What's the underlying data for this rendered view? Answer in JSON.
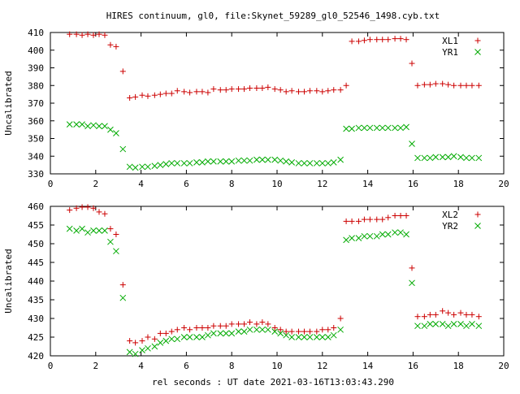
{
  "title": "HIRES continuum, gl0, file:Skynet_59289_gl0_52546_1498.cyb.txt",
  "xlabel": "rel seconds : UT date 2021-03-16T13:03:43.290",
  "chart_data": [
    {
      "type": "scatter",
      "ylabel": "Uncalibrated",
      "xlim": [
        0,
        20
      ],
      "ylim": [
        330,
        410
      ],
      "xticks": [
        "0",
        "2",
        "4",
        "6",
        "8",
        "10",
        "12",
        "14",
        "16",
        "18",
        "20"
      ],
      "yticks": [
        "330",
        "340",
        "350",
        "360",
        "370",
        "380",
        "390",
        "400",
        "410"
      ],
      "legend": "top-right",
      "series": [
        {
          "name": "XL1",
          "marker": "+",
          "color": "#cc0000",
          "x": [
            0.85,
            1.15,
            1.4,
            1.65,
            1.9,
            2.15,
            2.4,
            2.65,
            2.9,
            3.2,
            3.5,
            3.75,
            4.05,
            4.3,
            4.6,
            4.85,
            5.1,
            5.35,
            5.6,
            5.9,
            6.15,
            6.45,
            6.7,
            6.95,
            7.2,
            7.5,
            7.75,
            8.0,
            8.3,
            8.55,
            8.8,
            9.1,
            9.35,
            9.6,
            9.9,
            10.15,
            10.4,
            10.65,
            10.95,
            11.2,
            11.45,
            11.75,
            12.0,
            12.25,
            12.5,
            12.8,
            13.05,
            13.3,
            13.6,
            13.85,
            14.1,
            14.4,
            14.65,
            14.9,
            15.2,
            15.45,
            15.7,
            15.95,
            16.2,
            16.5,
            16.75,
            17.0,
            17.3,
            17.55,
            17.8,
            18.1,
            18.35,
            18.6,
            18.9
          ],
          "y": [
            409,
            409,
            408.5,
            409,
            408.5,
            409,
            408.5,
            403,
            402,
            388,
            373,
            373.5,
            374.5,
            374,
            374.5,
            375,
            375.5,
            375.5,
            377,
            376.5,
            376,
            376.5,
            376.5,
            376,
            378,
            377.5,
            377.5,
            378,
            378,
            378,
            378.5,
            378.5,
            378.5,
            379,
            378,
            377.5,
            376.5,
            377,
            376.5,
            376.5,
            377,
            377,
            376.5,
            377,
            377.5,
            377.5,
            380,
            405,
            405,
            405.5,
            406,
            406,
            406,
            406,
            406.5,
            406.5,
            406,
            392.5,
            380,
            380.5,
            380.5,
            381,
            381,
            380.5,
            380,
            380,
            380,
            380,
            380
          ]
        },
        {
          "name": "YR1",
          "marker": "x",
          "color": "#00aa00",
          "x": [
            0.85,
            1.15,
            1.4,
            1.65,
            1.9,
            2.15,
            2.4,
            2.65,
            2.9,
            3.2,
            3.5,
            3.75,
            4.05,
            4.3,
            4.6,
            4.85,
            5.1,
            5.35,
            5.6,
            5.9,
            6.15,
            6.45,
            6.7,
            6.95,
            7.2,
            7.5,
            7.75,
            8.0,
            8.3,
            8.55,
            8.8,
            9.1,
            9.35,
            9.6,
            9.9,
            10.15,
            10.4,
            10.65,
            10.95,
            11.2,
            11.45,
            11.75,
            12.0,
            12.25,
            12.5,
            12.8,
            13.05,
            13.3,
            13.6,
            13.85,
            14.1,
            14.4,
            14.65,
            14.9,
            15.2,
            15.45,
            15.7,
            15.95,
            16.2,
            16.5,
            16.75,
            17.0,
            17.3,
            17.55,
            17.8,
            18.1,
            18.35,
            18.6,
            18.9
          ],
          "y": [
            358,
            358,
            358,
            357,
            357.5,
            357,
            357,
            355,
            353,
            344,
            334,
            333.5,
            334,
            334,
            334.5,
            335,
            335.5,
            336,
            336,
            336,
            336,
            336.5,
            336.5,
            337,
            337,
            337,
            337,
            337,
            337.5,
            337.5,
            337.5,
            338,
            338,
            338,
            338,
            337.5,
            337,
            336.5,
            336,
            336,
            336,
            336,
            336,
            336,
            336.5,
            338,
            355.5,
            355.5,
            356,
            356,
            356,
            356,
            356,
            356,
            356,
            356,
            356.5,
            347,
            339,
            339,
            339,
            339.5,
            339.5,
            339.5,
            340,
            339.5,
            339,
            339,
            339
          ]
        }
      ]
    },
    {
      "type": "scatter",
      "ylabel": "Uncalibrated",
      "xlim": [
        0,
        20
      ],
      "ylim": [
        420,
        460
      ],
      "xticks": [
        "0",
        "2",
        "4",
        "6",
        "8",
        "10",
        "12",
        "14",
        "16",
        "18",
        "20"
      ],
      "yticks": [
        "420",
        "425",
        "430",
        "435",
        "440",
        "445",
        "450",
        "455",
        "460"
      ],
      "legend": "top-right",
      "series": [
        {
          "name": "XL2",
          "marker": "+",
          "color": "#cc0000",
          "x": [
            0.85,
            1.15,
            1.4,
            1.65,
            1.9,
            2.15,
            2.4,
            2.65,
            2.9,
            3.2,
            3.5,
            3.75,
            4.05,
            4.3,
            4.6,
            4.85,
            5.1,
            5.35,
            5.6,
            5.9,
            6.15,
            6.45,
            6.7,
            6.95,
            7.2,
            7.5,
            7.75,
            8.0,
            8.3,
            8.55,
            8.8,
            9.1,
            9.35,
            9.6,
            9.9,
            10.15,
            10.4,
            10.65,
            10.95,
            11.2,
            11.45,
            11.75,
            12.0,
            12.25,
            12.5,
            12.8,
            13.05,
            13.3,
            13.6,
            13.85,
            14.1,
            14.4,
            14.65,
            14.9,
            15.2,
            15.45,
            15.7,
            15.95,
            16.2,
            16.5,
            16.75,
            17.0,
            17.3,
            17.55,
            17.8,
            18.1,
            18.35,
            18.6,
            18.9
          ],
          "y": [
            459,
            459.5,
            459.8,
            459.8,
            459.5,
            458.5,
            458,
            454,
            452.5,
            439,
            424,
            423.5,
            424,
            425,
            424.5,
            426,
            426,
            426.5,
            427,
            427.5,
            427,
            427.5,
            427.5,
            427.5,
            428,
            428,
            428,
            428.5,
            428.5,
            428.5,
            429,
            428.5,
            429,
            428.5,
            427.5,
            427,
            426.5,
            426.5,
            426.5,
            426.5,
            426.5,
            426.5,
            427,
            427,
            427.5,
            430,
            456,
            456,
            456,
            456.5,
            456.5,
            456.5,
            456.5,
            457,
            457.5,
            457.5,
            457.5,
            443.5,
            430.5,
            430.5,
            431,
            431,
            432,
            431.5,
            431,
            431.5,
            431,
            431,
            430.5
          ]
        },
        {
          "name": "YR2",
          "marker": "x",
          "color": "#00aa00",
          "x": [
            0.85,
            1.15,
            1.4,
            1.65,
            1.9,
            2.15,
            2.4,
            2.65,
            2.9,
            3.2,
            3.5,
            3.75,
            4.05,
            4.3,
            4.6,
            4.85,
            5.1,
            5.35,
            5.6,
            5.9,
            6.15,
            6.45,
            6.7,
            6.95,
            7.2,
            7.5,
            7.75,
            8.0,
            8.3,
            8.55,
            8.8,
            9.1,
            9.35,
            9.6,
            9.9,
            10.15,
            10.4,
            10.65,
            10.95,
            11.2,
            11.45,
            11.75,
            12.0,
            12.25,
            12.5,
            12.8,
            13.05,
            13.3,
            13.6,
            13.85,
            14.1,
            14.4,
            14.65,
            14.9,
            15.2,
            15.45,
            15.7,
            15.95,
            16.2,
            16.5,
            16.75,
            17.0,
            17.3,
            17.55,
            17.8,
            18.1,
            18.35,
            18.6,
            18.9
          ],
          "y": [
            454,
            453.5,
            454,
            453,
            453.5,
            453.5,
            453.5,
            450.5,
            448,
            435.5,
            421,
            420.5,
            421.5,
            422,
            422.5,
            423.5,
            424,
            424.5,
            424.5,
            425,
            425,
            425,
            425,
            425.5,
            426,
            426,
            426,
            426,
            426.5,
            426.5,
            427,
            427,
            427,
            427,
            426.5,
            426,
            425.5,
            425,
            425,
            425,
            425,
            425,
            425,
            425,
            425.5,
            427,
            451,
            451.5,
            451.5,
            452,
            452,
            452,
            452.5,
            452.5,
            453,
            453,
            452.5,
            439.5,
            428,
            428,
            428.5,
            428.5,
            428.5,
            428,
            428.5,
            428.5,
            428,
            428.5,
            428
          ]
        }
      ]
    }
  ]
}
